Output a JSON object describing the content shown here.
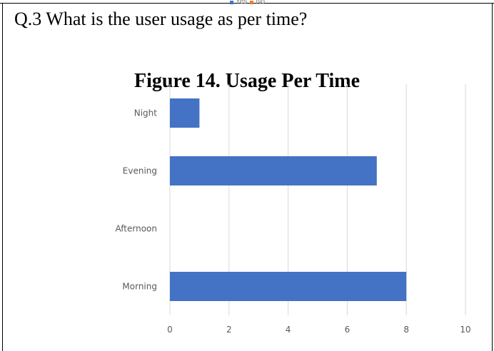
{
  "question": "Q.3 What is the user usage as per time?",
  "legend": [
    {
      "label": "Yes",
      "color": "#4472c4"
    },
    {
      "label": "No",
      "color": "#ed7d31"
    }
  ],
  "chart_data": {
    "type": "bar",
    "orientation": "horizontal",
    "title": "Figure 14. Usage Per Time",
    "categories": [
      "Night",
      "Evening",
      "Afternoon",
      "Morning"
    ],
    "values": [
      1,
      7,
      0,
      8
    ],
    "xlim": [
      0,
      10
    ],
    "xticks": [
      "0",
      "2",
      "4",
      "6",
      "8",
      "10"
    ],
    "bar_color": "#4472c4",
    "grid": true
  }
}
